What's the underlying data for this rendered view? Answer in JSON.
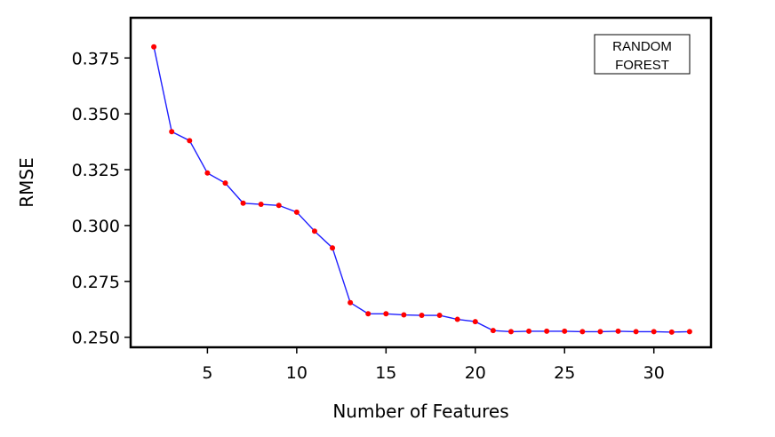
{
  "chart_data": {
    "type": "line",
    "xlabel": "Number of Features",
    "ylabel": "RMSE",
    "annotation_lines": [
      "RANDOM",
      "FOREST"
    ],
    "xlim": [
      0.7,
      33.2
    ],
    "ylim": [
      0.2455,
      0.393
    ],
    "xticks": [
      5,
      10,
      15,
      20,
      25,
      30
    ],
    "yticks": [
      0.25,
      0.275,
      0.3,
      0.325,
      0.35,
      0.375
    ],
    "ytick_labels": [
      "0.250",
      "0.275",
      "0.300",
      "0.325",
      "0.350",
      "0.375"
    ],
    "grid": false,
    "colors": {
      "line": "#1f1fff",
      "marker": "#ff0000"
    },
    "series": [
      {
        "x": [
          2,
          3,
          4,
          5,
          6,
          7,
          8,
          9,
          10,
          11,
          12,
          13,
          14,
          15,
          16,
          17,
          18,
          19,
          20,
          21,
          22,
          23,
          24,
          25,
          26,
          27,
          28,
          29,
          30,
          31,
          32
        ],
        "values": [
          0.38,
          0.342,
          0.338,
          0.3235,
          0.319,
          0.31,
          0.3095,
          0.309,
          0.306,
          0.2975,
          0.29,
          0.2655,
          0.2605,
          0.2605,
          0.26,
          0.2598,
          0.2598,
          0.258,
          0.257,
          0.253,
          0.2525,
          0.2527,
          0.2527,
          0.2527,
          0.2525,
          0.2525,
          0.2527,
          0.2525,
          0.2525,
          0.2523,
          0.2525
        ]
      }
    ]
  }
}
